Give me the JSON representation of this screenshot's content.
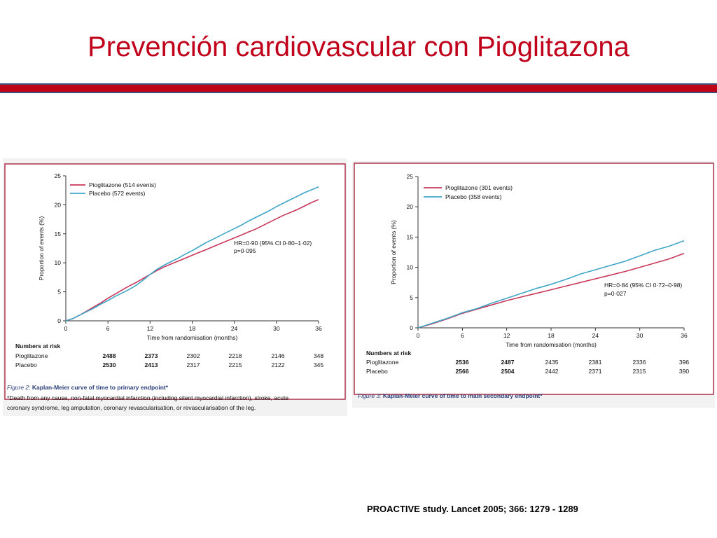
{
  "slide": {
    "title": "Prevención cardiovascular con Pioglitazona",
    "source": "PROACTIVE study. Lancet 2005; 366: 1279 - 1289",
    "accent_color": "#c0001a",
    "bar_color": "#c00418"
  },
  "chart_data": [
    {
      "type": "line",
      "ylabel": "Proportion of events (%)",
      "xlabel": "Time from randomisation (months)",
      "xlim": [
        0,
        36
      ],
      "ylim": [
        0,
        25
      ],
      "x_ticks": [
        "0",
        "6",
        "12",
        "18",
        "24",
        "30",
        "36"
      ],
      "y_ticks": [
        "0",
        "5",
        "10",
        "15",
        "20",
        "25"
      ],
      "legend_position": "top-left",
      "series": [
        {
          "name": "Pioglitazone (514 events)",
          "color": "#c8385a",
          "x": [
            0,
            1,
            2,
            3,
            4,
            5,
            6,
            7,
            8,
            9,
            10,
            11,
            12,
            13,
            14,
            15,
            16,
            17,
            18,
            19,
            20,
            21,
            22,
            23,
            24,
            25,
            26,
            27,
            28,
            29,
            30,
            31,
            32,
            33,
            34,
            35,
            36
          ],
          "y": [
            0,
            0.4,
            1.0,
            1.7,
            2.4,
            3.1,
            3.9,
            4.6,
            5.3,
            6.0,
            6.6,
            7.3,
            8.0,
            8.7,
            9.3,
            9.8,
            10.3,
            10.8,
            11.3,
            11.8,
            12.3,
            12.8,
            13.3,
            13.8,
            14.3,
            14.8,
            15.3,
            15.8,
            16.4,
            17.0,
            17.6,
            18.2,
            18.7,
            19.2,
            19.8,
            20.4,
            20.9
          ]
        },
        {
          "name": "Placebo (572 events)",
          "color": "#3fa6c8",
          "x": [
            0,
            1,
            2,
            3,
            4,
            5,
            6,
            7,
            8,
            9,
            10,
            11,
            12,
            13,
            14,
            15,
            16,
            17,
            18,
            19,
            20,
            21,
            22,
            23,
            24,
            25,
            26,
            27,
            28,
            29,
            30,
            31,
            32,
            33,
            34,
            35,
            36
          ],
          "y": [
            0,
            0.4,
            1.0,
            1.6,
            2.2,
            2.9,
            3.5,
            4.2,
            4.8,
            5.4,
            6.1,
            7.0,
            8.0,
            8.9,
            9.6,
            10.2,
            10.8,
            11.5,
            12.1,
            12.8,
            13.5,
            14.1,
            14.7,
            15.3,
            15.9,
            16.5,
            17.2,
            17.8,
            18.4,
            19.0,
            19.7,
            20.3,
            20.9,
            21.5,
            22.1,
            22.6,
            23.1
          ]
        }
      ],
      "annotation": [
        "HR=0·90 (95% CI 0·80–1·02)",
        "p=0·095"
      ],
      "risk_table": {
        "header": "Numbers at risk",
        "rows": [
          {
            "label": "Pioglitazone",
            "values": [
              "2488",
              "2373",
              "2302",
              "2218",
              "2146",
              "348"
            ]
          },
          {
            "label": "Placebo",
            "values": [
              "2530",
              "2413",
              "2317",
              "2215",
              "2122",
              "345"
            ]
          }
        ]
      },
      "caption_label": "Figure 2:",
      "caption_title": "Kaplan-Meier curve of time to primary endpoint*",
      "footnote": [
        "*Death from any cause, non-fatal myocardial infarction (including silent myocardial infarction), stroke, acute",
        "coronary syndrome, leg amputation, coronary revascularisation, or revascularisation of the leg."
      ]
    },
    {
      "type": "line",
      "ylabel": "Proportion of events (%)",
      "xlabel": "Time from randomisation (months)",
      "xlim": [
        0,
        36
      ],
      "ylim": [
        0,
        25
      ],
      "x_ticks": [
        "0",
        "6",
        "12",
        "18",
        "24",
        "30",
        "36"
      ],
      "y_ticks": [
        "0",
        "5",
        "10",
        "15",
        "20",
        "25"
      ],
      "legend_position": "top-left",
      "series": [
        {
          "name": "Pioglitazone (301 events)",
          "color": "#c8385a",
          "x": [
            0,
            2,
            4,
            6,
            8,
            10,
            12,
            14,
            16,
            18,
            20,
            22,
            24,
            26,
            28,
            30,
            32,
            34,
            36
          ],
          "y": [
            0,
            0.7,
            1.5,
            2.4,
            3.1,
            3.8,
            4.5,
            5.1,
            5.7,
            6.3,
            6.9,
            7.5,
            8.1,
            8.7,
            9.3,
            10.0,
            10.7,
            11.4,
            12.3
          ]
        },
        {
          "name": "Placebo (358 events)",
          "color": "#3fa6c8",
          "x": [
            0,
            2,
            4,
            6,
            8,
            10,
            12,
            14,
            16,
            18,
            20,
            22,
            24,
            26,
            28,
            30,
            32,
            34,
            36
          ],
          "y": [
            0,
            0.8,
            1.6,
            2.5,
            3.2,
            4.1,
            4.9,
            5.7,
            6.5,
            7.2,
            8.0,
            8.9,
            9.6,
            10.3,
            11.0,
            11.9,
            12.8,
            13.5,
            14.4
          ]
        }
      ],
      "annotation": [
        "HR=0·84 (95% CI 0·72–0·98)",
        "p=0·027"
      ],
      "risk_table": {
        "header": "Numbers at risk",
        "rows": [
          {
            "label": "Pioglitazone",
            "values": [
              "2536",
              "2487",
              "2435",
              "2381",
              "2336",
              "396"
            ]
          },
          {
            "label": "Placebo",
            "values": [
              "2566",
              "2504",
              "2442",
              "2371",
              "2315",
              "390"
            ]
          }
        ]
      },
      "caption_label": "Figure 3:",
      "caption_title": "Kaplan-Meier curve of time to main secondary endpoint*",
      "footnote": []
    }
  ]
}
